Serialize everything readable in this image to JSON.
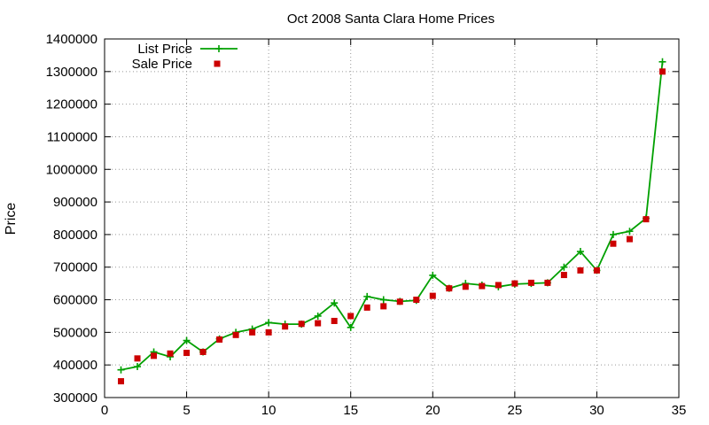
{
  "chart_data": {
    "type": "line",
    "title": "Oct 2008 Santa Clara Home Prices",
    "xlabel": "",
    "ylabel": "Price",
    "xlim": [
      0,
      35
    ],
    "ylim": [
      300000,
      1400000
    ],
    "xticks": [
      "0",
      "5",
      "10",
      "15",
      "20",
      "25",
      "30",
      "35"
    ],
    "yticks": [
      "300000",
      "400000",
      "500000",
      "600000",
      "700000",
      "800000",
      "900000",
      "1000000",
      "1100000",
      "1200000",
      "1300000",
      "1400000"
    ],
    "grid": true,
    "legend_position": "top-left",
    "x": [
      1,
      2,
      3,
      4,
      5,
      6,
      7,
      8,
      9,
      10,
      11,
      12,
      13,
      14,
      15,
      16,
      17,
      18,
      19,
      20,
      21,
      22,
      23,
      24,
      25,
      26,
      27,
      28,
      29,
      30,
      31,
      32,
      33,
      34
    ],
    "series": [
      {
        "name": "List Price",
        "style": "linespoints",
        "color": "#00a000",
        "marker": "plus",
        "values": [
          385000,
          395000,
          440000,
          425000,
          475000,
          440000,
          480000,
          500000,
          510000,
          530000,
          525000,
          525000,
          550000,
          590000,
          515000,
          610000,
          600000,
          595000,
          598000,
          675000,
          635000,
          650000,
          645000,
          640000,
          648000,
          650000,
          652000,
          700000,
          748000,
          690000,
          800000,
          810000,
          850000,
          1330000
        ]
      },
      {
        "name": "Sale Price",
        "style": "points",
        "color": "#cc0000",
        "marker": "square",
        "values": [
          350000,
          420000,
          428000,
          435000,
          437000,
          440000,
          478000,
          492000,
          500000,
          500000,
          518000,
          526000,
          528000,
          535000,
          550000,
          576000,
          580000,
          594000,
          600000,
          612000,
          635000,
          640000,
          642000,
          645000,
          650000,
          652000,
          652000,
          676000,
          690000,
          690000,
          772000,
          786000,
          847000,
          1300000
        ]
      }
    ]
  }
}
